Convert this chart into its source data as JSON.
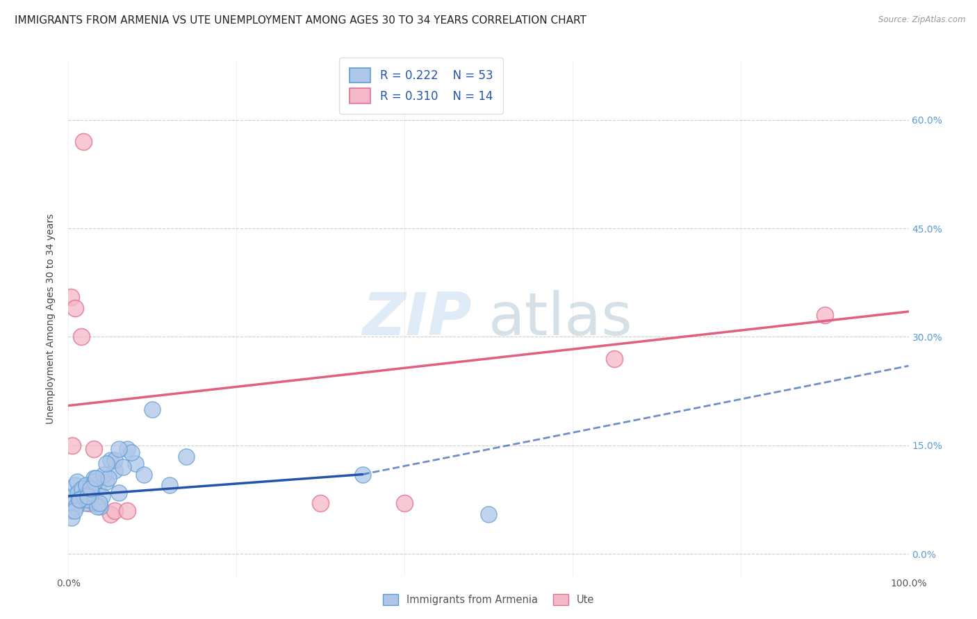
{
  "title": "IMMIGRANTS FROM ARMENIA VS UTE UNEMPLOYMENT AMONG AGES 30 TO 34 YEARS CORRELATION CHART",
  "source": "Source: ZipAtlas.com",
  "ylabel": "Unemployment Among Ages 30 to 34 years",
  "xlim": [
    0,
    100
  ],
  "ylim": [
    -3,
    68
  ],
  "xticks": [
    0,
    20,
    40,
    60,
    80,
    100
  ],
  "xticklabels": [
    "0.0%",
    "",
    "",
    "",
    "",
    "100.0%"
  ],
  "yticks": [
    0,
    15,
    30,
    45,
    60
  ],
  "yticklabels_right": [
    "0.0%",
    "15.0%",
    "30.0%",
    "45.0%",
    "60.0%"
  ],
  "legend_r_armenia": "R = 0.222",
  "legend_n_armenia": "N = 53",
  "legend_r_ute": "R = 0.310",
  "legend_n_ute": "N = 14",
  "watermark_zip": "ZIP",
  "watermark_atlas": "atlas",
  "armenia_color": "#aec6e8",
  "armenia_edge_color": "#5b9bd5",
  "ute_color": "#f4b8c8",
  "ute_edge_color": "#e07090",
  "armenia_line_color": "#2255aa",
  "ute_line_color": "#e06080",
  "armenia_scatter_x": [
    0.5,
    0.8,
    1.0,
    1.2,
    1.5,
    1.8,
    2.0,
    2.2,
    2.5,
    2.8,
    3.0,
    3.2,
    3.5,
    3.8,
    4.0,
    4.5,
    5.0,
    5.5,
    6.0,
    7.0,
    8.0,
    9.0,
    10.0,
    12.0,
    14.0,
    0.3,
    0.6,
    0.9,
    1.1,
    1.4,
    1.6,
    1.9,
    2.1,
    2.4,
    2.7,
    3.1,
    3.4,
    3.7,
    4.2,
    4.8,
    5.5,
    6.5,
    7.5,
    0.4,
    0.7,
    1.3,
    2.3,
    2.6,
    3.3,
    4.5,
    6.0,
    35.0,
    50.0
  ],
  "armenia_scatter_y": [
    8.0,
    9.5,
    10.0,
    7.5,
    8.5,
    9.0,
    7.0,
    8.0,
    9.5,
    8.5,
    10.5,
    7.0,
    9.0,
    6.5,
    8.0,
    10.0,
    13.0,
    11.5,
    8.5,
    14.5,
    12.5,
    11.0,
    20.0,
    9.5,
    13.5,
    6.0,
    7.0,
    6.5,
    8.5,
    7.5,
    9.0,
    8.0,
    9.5,
    7.5,
    8.5,
    10.0,
    6.5,
    7.0,
    11.0,
    10.5,
    13.0,
    12.0,
    14.0,
    5.0,
    6.0,
    7.5,
    8.0,
    9.0,
    10.5,
    12.5,
    14.5,
    11.0,
    5.5
  ],
  "ute_scatter_x": [
    0.3,
    0.8,
    1.5,
    3.0,
    5.0,
    5.5,
    1.8,
    2.5,
    0.5,
    65.0,
    7.0,
    30.0,
    40.0,
    90.0
  ],
  "ute_scatter_y": [
    35.5,
    34.0,
    30.0,
    14.5,
    5.5,
    6.0,
    57.0,
    7.0,
    15.0,
    27.0,
    6.0,
    7.0,
    7.0,
    33.0
  ],
  "armenia_reg_x0": 0,
  "armenia_reg_x1": 35,
  "armenia_reg_y0": 8.0,
  "armenia_reg_y1": 11.0,
  "armenia_ci_x0": 35,
  "armenia_ci_x1": 100,
  "armenia_ci_y0": 11.0,
  "armenia_ci_y1": 26.0,
  "ute_reg_x0": 0,
  "ute_reg_x1": 100,
  "ute_reg_y0": 20.5,
  "ute_reg_y1": 33.5,
  "grid_color": "#cccccc",
  "background_color": "#ffffff",
  "title_fontsize": 11,
  "axis_label_fontsize": 10,
  "tick_fontsize": 10,
  "legend_fontsize": 12
}
